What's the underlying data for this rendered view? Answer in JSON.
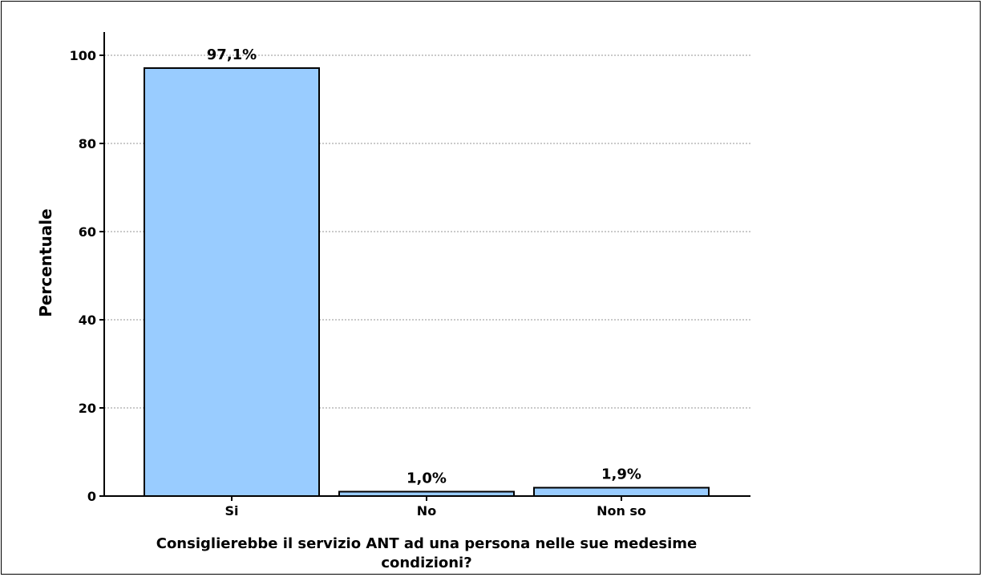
{
  "chart_data": {
    "type": "bar",
    "categories": [
      "Si",
      "No",
      "Non so"
    ],
    "values": [
      97.1,
      1.0,
      1.9
    ],
    "data_labels": [
      "97,1%",
      "1,0%",
      "1,9%"
    ],
    "title": "",
    "xlabel_lines": [
      "Consiglierebbe il servizio ANT ad una persona nelle sue medesime",
      "condizioni?"
    ],
    "ylabel": "Percentuale",
    "ylim": [
      0,
      100
    ],
    "yticks": [
      0,
      20,
      40,
      60,
      80,
      100
    ],
    "grid": true,
    "colors": {
      "bar_fill": "#99ccff",
      "bar_stroke": "#000000",
      "grid": "#b8b8b8"
    }
  }
}
